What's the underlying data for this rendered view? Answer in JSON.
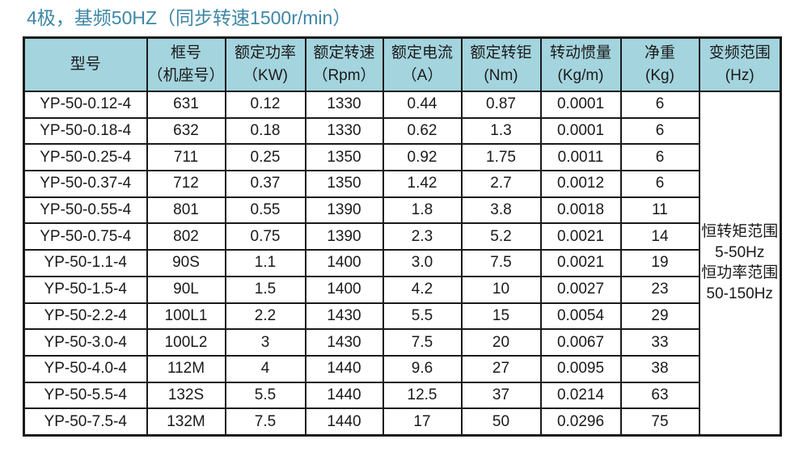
{
  "title": "4极，基频50HZ（同步转速1500r/min）",
  "colors": {
    "title_text": "#3d87a6",
    "header_background": "#a4d4de",
    "grid_border": "#1a1a1a",
    "cell_text": "#1a1a1a"
  },
  "table": {
    "columns": [
      {
        "line1": "型号",
        "line2": ""
      },
      {
        "line1": "框号",
        "line2": "（机座号）"
      },
      {
        "line1": "额定功率",
        "line2": "（KW)"
      },
      {
        "line1": "额定转速",
        "line2": "（Rpm）"
      },
      {
        "line1": "额定电流",
        "line2": "（A）"
      },
      {
        "line1": "额定转钜",
        "line2": "(Nm)"
      },
      {
        "line1": "转动惯量",
        "line2": "(Kg/m)"
      },
      {
        "line1": "净重",
        "line2": "(Kg)"
      },
      {
        "line1": "变频范围",
        "line2": "(Hz)"
      }
    ],
    "rows": [
      [
        "YP-50-0.12-4",
        "631",
        "0.12",
        "1330",
        "0.44",
        "0.87",
        "0.0001",
        "6"
      ],
      [
        "YP-50-0.18-4",
        "632",
        "0.18",
        "1330",
        "0.62",
        "1.3",
        "0.0001",
        "6"
      ],
      [
        "YP-50-0.25-4",
        "711",
        "0.25",
        "1350",
        "0.92",
        "1.75",
        "0.0011",
        "6"
      ],
      [
        "YP-50-0.37-4",
        "712",
        "0.37",
        "1350",
        "1.42",
        "2.7",
        "0.0012",
        "6"
      ],
      [
        "YP-50-0.55-4",
        "801",
        "0.55",
        "1390",
        "1.8",
        "3.8",
        "0.0018",
        "11"
      ],
      [
        "YP-50-0.75-4",
        "802",
        "0.75",
        "1390",
        "2.3",
        "5.2",
        "0.0021",
        "14"
      ],
      [
        "YP-50-1.1-4",
        "90S",
        "1.1",
        "1400",
        "3.0",
        "7.5",
        "0.0021",
        "19"
      ],
      [
        "YP-50-1.5-4",
        "90L",
        "1.5",
        "1400",
        "4.2",
        "10",
        "0.0027",
        "23"
      ],
      [
        "YP-50-2.2-4",
        "100L1",
        "2.2",
        "1430",
        "5.5",
        "15",
        "0.0054",
        "29"
      ],
      [
        "YP-50-3.0-4",
        "100L2",
        "3",
        "1430",
        "7.5",
        "20",
        "0.0067",
        "33"
      ],
      [
        "YP-50-4.0-4",
        "112M",
        "4",
        "1440",
        "9.6",
        "27",
        "0.0095",
        "38"
      ],
      [
        "YP-50-5.5-4",
        "132S",
        "5.5",
        "1440",
        "12.5",
        "37",
        "0.0214",
        "63"
      ],
      [
        "YP-50-7.5-4",
        "132M",
        "7.5",
        "1440",
        "17",
        "50",
        "0.0296",
        "75"
      ]
    ],
    "freq_range_lines": [
      "恒转矩范围",
      "5-50Hz",
      "恒功率范围",
      "50-150Hz"
    ]
  }
}
